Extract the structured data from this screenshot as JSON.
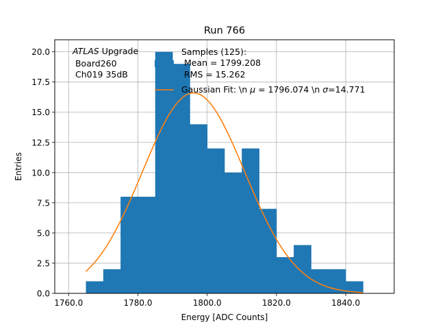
{
  "chart_data": {
    "type": "bar",
    "title": "Run 766",
    "xlabel": "Energy [ADC Counts]",
    "ylabel": "Entries",
    "xlim": [
      1756.0,
      1854.0
    ],
    "ylim": [
      0,
      21.0
    ],
    "grid": true,
    "xticks": [
      1760.0,
      1780.0,
      1800.0,
      1820.0,
      1840.0
    ],
    "xtick_labels": [
      "1760.0",
      "1780.0",
      "1800.0",
      "1820.0",
      "1840.0"
    ],
    "yticks": [
      0.0,
      2.5,
      5.0,
      7.5,
      10.0,
      12.5,
      15.0,
      17.5,
      20.0
    ],
    "ytick_labels": [
      "0.0",
      "2.5",
      "5.0",
      "7.5",
      "10.0",
      "12.5",
      "15.0",
      "17.5",
      "20.0"
    ],
    "bin_width": 5,
    "bin_edges_start": [
      1765,
      1770,
      1775,
      1780,
      1785,
      1790,
      1795,
      1800,
      1805,
      1810,
      1815,
      1820,
      1825,
      1830,
      1835,
      1840
    ],
    "values": [
      1,
      2,
      8,
      8,
      20,
      19,
      14,
      12,
      10,
      12,
      7,
      3,
      4,
      2,
      2,
      1
    ],
    "gaussian_fit": {
      "mu": 1796.074,
      "sigma": 14.771,
      "amplitude": 16.6,
      "x_range": [
        1765,
        1845
      ]
    },
    "colors": {
      "bars": "#1f77b4",
      "fit": "#ff7f0e",
      "grid": "#b0b0b0"
    },
    "annotation": {
      "italic": "ATLAS",
      "rest": " Upgrade",
      "line2": " Board260",
      "line3": " Ch019 35dB"
    },
    "legend": {
      "placement": "top-right",
      "samples": [
        "Samples (125):",
        " Mean = 1799.208",
        " RMS = 15.262"
      ],
      "fit_prefix": "Gaussian Fit: \\n ",
      "fit_mu_symbol": "μ",
      "fit_mid": " = 1796.074 \\n ",
      "fit_sigma_symbol": "σ",
      "fit_suffix": "=14.771"
    }
  }
}
